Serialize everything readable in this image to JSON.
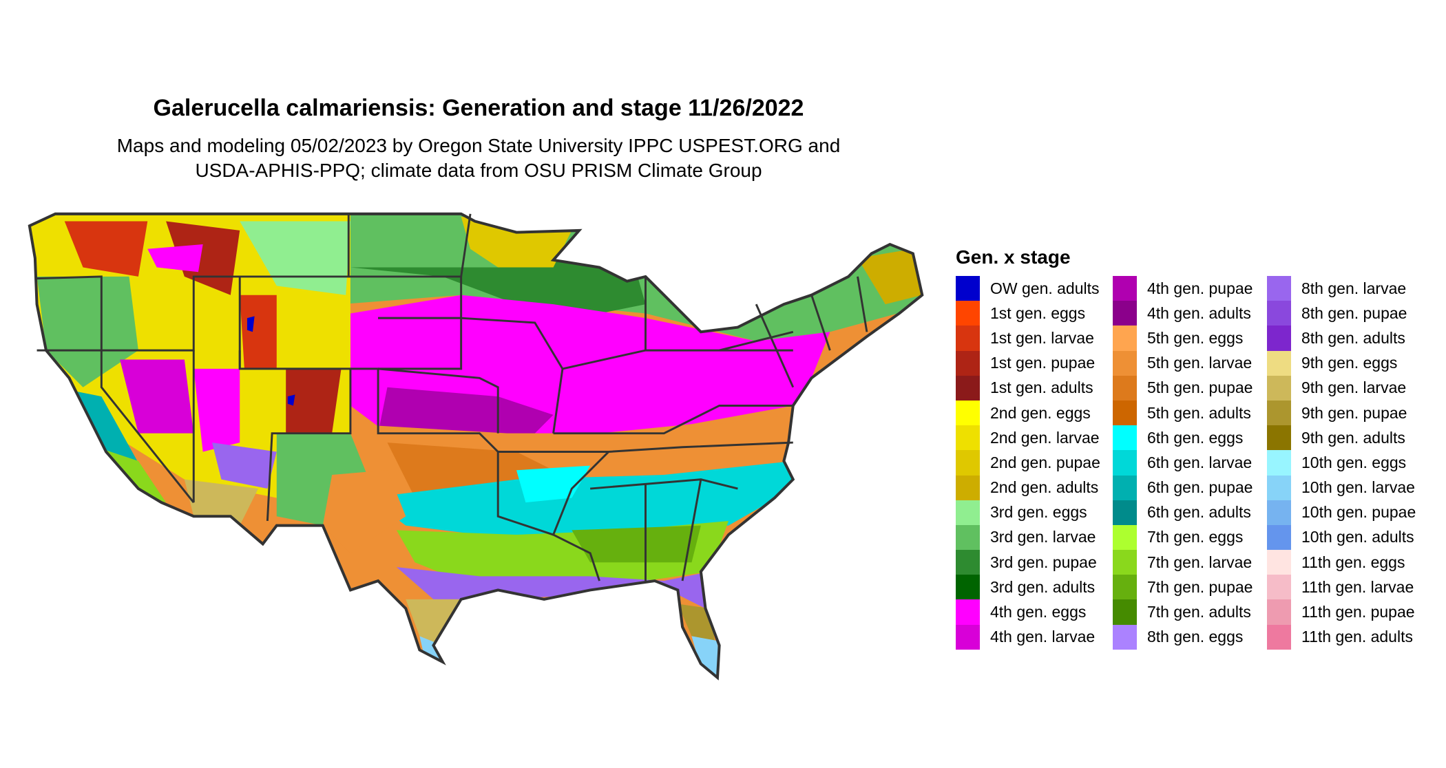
{
  "title": "Galerucella calmariensis: Generation and stage 11/26/2022",
  "subtitle_lines": [
    "Maps and modeling 05/02/2023 by Oregon State University IPPC USPEST.ORG and",
    "USDA-APHIS-PPQ; climate data from OSU PRISM Climate Group"
  ],
  "legend": {
    "title": "Gen. x stage",
    "columns": [
      [
        {
          "label": "OW gen. adults",
          "color": "#0000CD"
        },
        {
          "label": "1st gen. eggs",
          "color": "#FF4500"
        },
        {
          "label": "1st gen. larvae",
          "color": "#D8350F"
        },
        {
          "label": "1st gen. pupae",
          "color": "#AE2415"
        },
        {
          "label": "1st gen. adults",
          "color": "#8B1A1A"
        },
        {
          "label": "2nd gen. eggs",
          "color": "#FFFF00"
        },
        {
          "label": "2nd gen. larvae",
          "color": "#EEE000"
        },
        {
          "label": "2nd gen. pupae",
          "color": "#DFC800"
        },
        {
          "label": "2nd gen. adults",
          "color": "#CDAD00"
        },
        {
          "label": "3rd gen. eggs",
          "color": "#90EE90"
        },
        {
          "label": "3rd gen. larvae",
          "color": "#60C060"
        },
        {
          "label": "3rd gen. pupae",
          "color": "#2E8B30"
        },
        {
          "label": "3rd gen. adults",
          "color": "#006400"
        },
        {
          "label": "4th gen. eggs",
          "color": "#FF00FF"
        },
        {
          "label": "4th gen. larvae",
          "color": "#D800D8"
        }
      ],
      [
        {
          "label": "4th gen. pupae",
          "color": "#B000B0"
        },
        {
          "label": "4th gen. adults",
          "color": "#8B008B"
        },
        {
          "label": "5th gen. eggs",
          "color": "#FFA54F"
        },
        {
          "label": "5th gen. larvae",
          "color": "#EE9035"
        },
        {
          "label": "5th gen. pupae",
          "color": "#DD7A1C"
        },
        {
          "label": "5th gen. adults",
          "color": "#CD6600"
        },
        {
          "label": "6th gen. eggs",
          "color": "#00FFFF"
        },
        {
          "label": "6th gen. larvae",
          "color": "#00D8D8"
        },
        {
          "label": "6th gen. pupae",
          "color": "#00B0B0"
        },
        {
          "label": "6th gen. adults",
          "color": "#008B8B"
        },
        {
          "label": "7th gen. eggs",
          "color": "#ADFF2F"
        },
        {
          "label": "7th gen. larvae",
          "color": "#8AD81C"
        },
        {
          "label": "7th gen. pupae",
          "color": "#66B00E"
        },
        {
          "label": "7th gen. adults",
          "color": "#458B00"
        },
        {
          "label": "8th gen. eggs",
          "color": "#AB82FF"
        }
      ],
      [
        {
          "label": "8th gen. larvae",
          "color": "#9966EE"
        },
        {
          "label": "8th gen. pupae",
          "color": "#8A48DD"
        },
        {
          "label": "8th gen. adults",
          "color": "#7D26CD"
        },
        {
          "label": "9th gen. eggs",
          "color": "#EEDC82"
        },
        {
          "label": "9th gen. larvae",
          "color": "#CDB85A"
        },
        {
          "label": "9th gen. pupae",
          "color": "#AC962E"
        },
        {
          "label": "9th gen. adults",
          "color": "#8B7500"
        },
        {
          "label": "10th gen. eggs",
          "color": "#98F5FF"
        },
        {
          "label": "10th gen. larvae",
          "color": "#87D3F8"
        },
        {
          "label": "10th gen. pupae",
          "color": "#76B3F0"
        },
        {
          "label": "10th gen. adults",
          "color": "#6495ED"
        },
        {
          "label": "11th gen. eggs",
          "color": "#FFE4E1"
        },
        {
          "label": "11th gen. larvae",
          "color": "#F6BCC8"
        },
        {
          "label": "11th gen. pupae",
          "color": "#EE9BB0"
        },
        {
          "label": "11th gen. adults",
          "color": "#EE799F"
        }
      ]
    ]
  }
}
